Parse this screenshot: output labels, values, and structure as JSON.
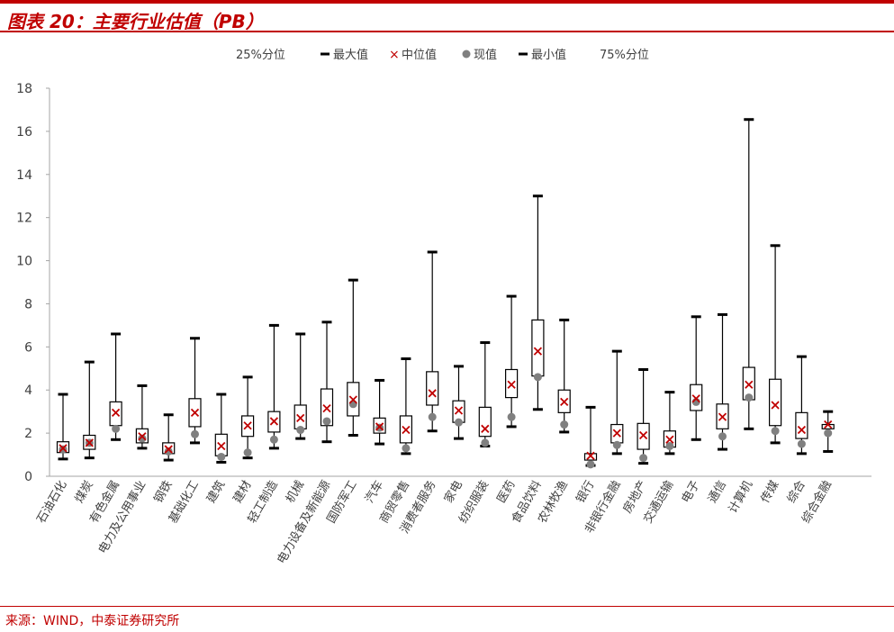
{
  "title": "图表 20：主要行业估值（PB）",
  "source": "来源：WIND，中泰证券研究所",
  "colors": {
    "accent": "#c00000",
    "box": "#000000",
    "median": "#c00000",
    "current": "#808080"
  },
  "legend": {
    "q1": "25%分位",
    "max": "最大值",
    "median": "中位值",
    "current": "现值",
    "min": "最小值",
    "q3": "75%分位"
  },
  "chart_data": {
    "type": "box",
    "ylim": [
      0,
      18
    ],
    "yticks": [
      0,
      2,
      4,
      6,
      8,
      10,
      12,
      14,
      16,
      18
    ],
    "grid": false,
    "legend_position": "top",
    "categories": [
      "石油石化",
      "煤炭",
      "有色金属",
      "电力及公用事业",
      "钢铁",
      "基础化工",
      "建筑",
      "建材",
      "轻工制造",
      "机械",
      "电力设备及新能源",
      "国防军工",
      "汽车",
      "商贸零售",
      "消费者服务",
      "家电",
      "纺织服装",
      "医药",
      "食品饮料",
      "农林牧渔",
      "银行",
      "非银行金融",
      "房地产",
      "交通运输",
      "电子",
      "通信",
      "计算机",
      "传媒",
      "综合",
      "综合金融"
    ],
    "series": [
      {
        "name": "最大值",
        "values": [
          3.8,
          5.3,
          6.6,
          4.2,
          2.85,
          6.4,
          3.8,
          4.6,
          7.0,
          6.6,
          7.15,
          9.1,
          4.45,
          5.45,
          10.4,
          5.1,
          6.2,
          8.35,
          13.0,
          7.25,
          3.2,
          5.8,
          4.95,
          3.9,
          7.4,
          7.5,
          16.55,
          10.7,
          5.55,
          3.0
        ]
      },
      {
        "name": "75%分位",
        "values": [
          1.6,
          1.9,
          3.45,
          2.2,
          1.55,
          3.6,
          1.95,
          2.8,
          3.0,
          3.3,
          4.05,
          4.35,
          2.7,
          2.8,
          4.85,
          3.5,
          3.2,
          4.95,
          7.25,
          4.0,
          1.05,
          2.4,
          2.45,
          2.1,
          4.25,
          3.35,
          5.05,
          4.5,
          2.95,
          2.4
        ]
      },
      {
        "name": "中位值",
        "values": [
          1.3,
          1.55,
          2.95,
          1.85,
          1.25,
          2.95,
          1.4,
          2.35,
          2.55,
          2.7,
          3.15,
          3.55,
          2.3,
          2.15,
          3.85,
          3.05,
          2.2,
          4.25,
          5.8,
          3.45,
          0.95,
          2.0,
          1.9,
          1.7,
          3.6,
          2.75,
          4.25,
          3.3,
          2.15,
          2.4
        ]
      },
      {
        "name": "25%分位",
        "values": [
          1.1,
          1.25,
          2.35,
          1.55,
          1.05,
          2.3,
          0.95,
          1.85,
          2.05,
          2.2,
          2.35,
          2.8,
          2.0,
          1.55,
          3.3,
          2.5,
          1.85,
          3.65,
          4.65,
          2.95,
          0.75,
          1.55,
          1.25,
          1.35,
          3.05,
          2.2,
          3.55,
          2.35,
          1.75,
          2.2
        ]
      },
      {
        "name": "最小值",
        "values": [
          0.8,
          0.85,
          1.7,
          1.3,
          0.75,
          1.55,
          0.65,
          0.85,
          1.3,
          1.75,
          1.6,
          1.9,
          1.5,
          1.05,
          2.1,
          1.75,
          1.4,
          2.3,
          3.1,
          2.05,
          0.5,
          1.05,
          0.6,
          1.05,
          1.7,
          1.25,
          2.2,
          1.55,
          1.05,
          1.15
        ]
      },
      {
        "name": "现值",
        "values": [
          1.25,
          1.55,
          2.2,
          1.75,
          1.15,
          1.95,
          0.9,
          1.1,
          1.7,
          2.15,
          2.55,
          3.35,
          2.25,
          1.3,
          2.75,
          2.5,
          1.55,
          2.75,
          4.6,
          2.4,
          0.55,
          1.45,
          0.85,
          1.4,
          3.45,
          1.85,
          3.65,
          2.1,
          1.5,
          2.0
        ]
      }
    ]
  }
}
